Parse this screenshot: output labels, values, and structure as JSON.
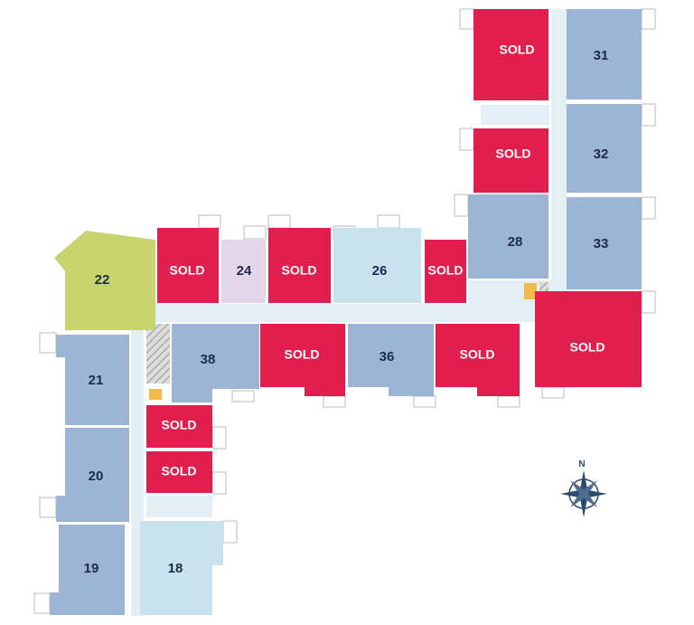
{
  "units": [
    "SOLD",
    "31",
    "SOLD",
    "32",
    "28",
    "33",
    "SOLD",
    "22",
    "SOLD",
    "24",
    "SOLD",
    "26",
    "SOLD",
    "38",
    "SOLD",
    "36",
    "SOLD",
    "21",
    "20",
    "19",
    "SOLD",
    "SOLD",
    "18"
  ],
  "compass": "N"
}
